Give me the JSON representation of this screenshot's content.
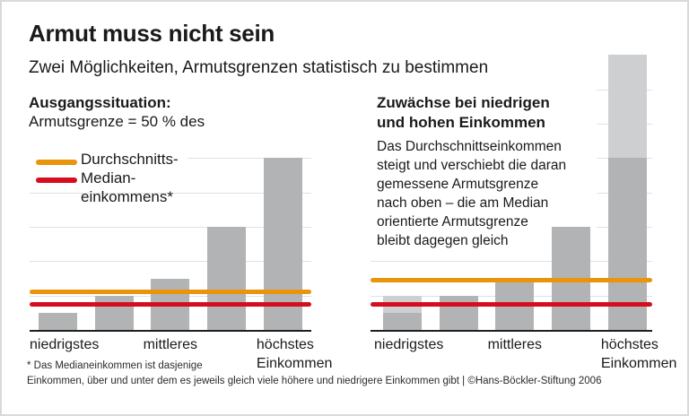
{
  "header": {
    "title": "Armut muss nicht sein",
    "subtitle": "Zwei Möglichkeiten, Armutsgrenzen statistisch zu bestimmen"
  },
  "left_panel": {
    "heading": "Ausgangssituation:",
    "formula": "Armutsgrenze = 50 % des",
    "legend": [
      {
        "label": "Durchschnitts-",
        "color": "#e9940a"
      },
      {
        "label": "Median-\neinkommens*",
        "color": "#d60d1e"
      }
    ]
  },
  "right_panel": {
    "heading": "Zuwächse bei niedrigen\nund hohen Einkommen",
    "paragraph": "Das Durchschnittseinkommen\nsteigt und verschiebt die daran\ngemessene Armutsgrenze\nnach oben – die am Median\norientierte Armutsgrenze\nbleibt dagegen gleich"
  },
  "footnote": {
    "line1": "* Das Medianeinkommen ist dasjenige",
    "line2": "Einkommen, über und unter dem es jeweils gleich viele höhere und niedrigere Einkommen gibt | ©Hans-Böckler-Stiftung 2006"
  },
  "colors": {
    "average_line_orange": "#e9940a",
    "median_line_red": "#d60d1e",
    "bar_gray": "#b1b3b5",
    "bar_growth_gray": "#cdcfd1",
    "gridline_gray": "#dfe1e3"
  },
  "chart_data": [
    {
      "type": "bar",
      "title": "Ausgangssituation: Armutsgrenze = 50 % des Durchschnitts- / Medianeinkommens",
      "categories": [
        "niedrigstes",
        "mittleres",
        "höchstes\nEinkommen"
      ],
      "series": [
        {
          "name": "Einkommen",
          "color": "#b1b3b5",
          "values": [
            0.5,
            1,
            1.5,
            3,
            5
          ]
        }
      ],
      "reference_lines": [
        {
          "id": "average-income-line",
          "label": "Durchschnittseinkommen (50 %)",
          "value": 1.1,
          "color": "#e9940a"
        },
        {
          "id": "median-income-line",
          "label": "Medianeinkommen (50 %)",
          "value": 0.75,
          "color": "#d60d1e"
        }
      ],
      "ylim": [
        0,
        8.1
      ],
      "grid": true,
      "legend_position": "upper-left"
    },
    {
      "type": "bar",
      "stacked": true,
      "title": "Zuwächse bei niedrigen und hohen Einkommen",
      "categories": [
        "niedrigstes",
        "mittleres",
        "höchstes\nEinkommen"
      ],
      "series": [
        {
          "name": "Einkommen",
          "color": "#b1b3b5",
          "values": [
            0.5,
            1,
            1.5,
            3,
            5
          ]
        },
        {
          "name": "Zuwachs",
          "color": "#cdcfd1",
          "values": [
            0.5,
            0,
            0,
            0,
            3
          ]
        }
      ],
      "reference_lines": [
        {
          "id": "average-income-line",
          "label": "Durchschnittseinkommen (50 %)",
          "value": 1.45,
          "color": "#e9940a"
        },
        {
          "id": "median-income-line",
          "label": "Medianeinkommen (50 %)",
          "value": 0.75,
          "color": "#d60d1e"
        }
      ],
      "ylim": [
        0,
        8.1
      ],
      "grid": true
    }
  ]
}
